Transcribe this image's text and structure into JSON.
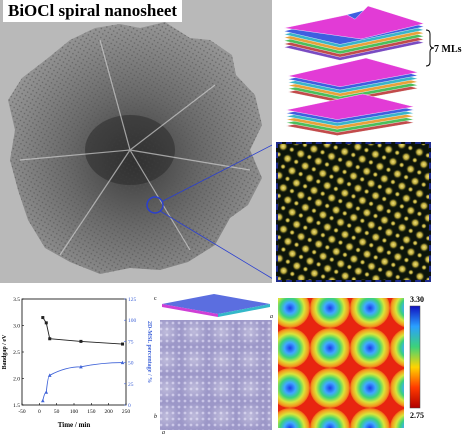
{
  "figure": {
    "title": "BiOCl spiral nanosheet",
    "model_label": "7 MLs"
  },
  "colors": {
    "accent_blue": "#1d2a8c",
    "plot_black": "#222222",
    "plot_blue": "#3f63d8"
  },
  "chart_data": {
    "type": "line",
    "xlabel": "Time / min",
    "ylabel_left": "Bandgap / eV",
    "ylabel_right": "2D-MSL percentage / %",
    "x_ticks": [
      "-50",
      "0",
      "50",
      "100",
      "150",
      "200",
      "250"
    ],
    "y_ticks_left": [
      "1.5",
      "2.0",
      "2.5",
      "3.0",
      "3.5"
    ],
    "y_ticks_right": [
      "0",
      "25",
      "50",
      "75",
      "100",
      "125"
    ],
    "xlim": [
      -50,
      250
    ],
    "ylim_left": [
      1.5,
      3.5
    ],
    "ylim_right": [
      0,
      125
    ],
    "series": [
      {
        "axis": "left",
        "x": [
          10,
          20,
          30,
          120,
          240
        ],
        "y": [
          3.15,
          3.05,
          2.75,
          2.7,
          2.65
        ]
      },
      {
        "axis": "right",
        "x": [
          10,
          20,
          30,
          120,
          240
        ],
        "y": [
          5,
          15,
          35,
          45,
          50
        ]
      }
    ]
  },
  "colorbar": {
    "max_label": "3.30",
    "min_label": "2.75"
  },
  "axes_labels": {
    "a": "a",
    "b": "b",
    "c": "c"
  }
}
